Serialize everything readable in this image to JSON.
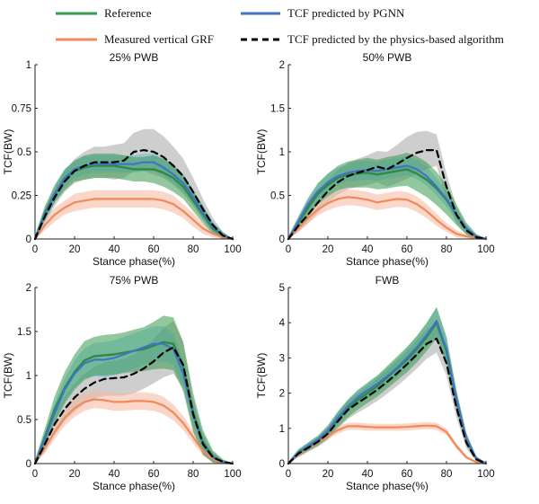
{
  "legend": [
    {
      "key": "reference",
      "label": "Reference",
      "color": "#3a9b50",
      "dash": false
    },
    {
      "key": "measured",
      "label": "Measured vertical  GRF",
      "color": "#f08a5d",
      "dash": false
    },
    {
      "key": "pgnn",
      "label": "TCF predicted by PGNN",
      "color": "#4472c4",
      "dash": false
    },
    {
      "key": "physics",
      "label": "TCF predicted by the physics-based algorithm",
      "color": "#000000",
      "dash": true
    }
  ],
  "colors": {
    "reference_band": "#3a9b50",
    "measured_band": "#f5b79a",
    "pgnn_band": "#5bb8e0",
    "physics_band": "#a6a6a6",
    "axis": "#222222"
  },
  "chart_data": [
    {
      "type": "line",
      "title": "25% PWB",
      "xlabel": "Stance phase(%)",
      "ylabel": "TCF(BW)",
      "xlim": [
        0,
        100
      ],
      "ylim": [
        0,
        1
      ],
      "xticks": [
        0,
        20,
        40,
        60,
        80,
        100
      ],
      "xtick_labels": [
        "0",
        "20",
        "40",
        "60",
        "80",
        "100"
      ],
      "yticks": [
        0,
        0.25,
        0.5,
        0.75,
        1
      ],
      "ytick_labels": [
        "0",
        "0.25",
        "0.5",
        "0.75",
        "1"
      ],
      "x": [
        0,
        5,
        10,
        15,
        20,
        25,
        30,
        35,
        40,
        45,
        50,
        55,
        60,
        65,
        70,
        75,
        80,
        85,
        90,
        95,
        100
      ],
      "series": [
        {
          "name": "Measured vertical GRF",
          "key": "measured",
          "values": [
            0,
            0.08,
            0.14,
            0.18,
            0.21,
            0.22,
            0.23,
            0.23,
            0.23,
            0.23,
            0.23,
            0.23,
            0.23,
            0.22,
            0.2,
            0.16,
            0.11,
            0.06,
            0.03,
            0.01,
            0
          ],
          "band": [
            0.02,
            0.03,
            0.04,
            0.04,
            0.05,
            0.05,
            0.05,
            0.05,
            0.05,
            0.05,
            0.05,
            0.05,
            0.05,
            0.05,
            0.05,
            0.04,
            0.04,
            0.03,
            0.02,
            0.01,
            0
          ]
        },
        {
          "name": "Reference",
          "key": "reference",
          "values": [
            0,
            0.15,
            0.26,
            0.34,
            0.39,
            0.41,
            0.42,
            0.42,
            0.42,
            0.41,
            0.4,
            0.4,
            0.4,
            0.38,
            0.35,
            0.3,
            0.22,
            0.14,
            0.06,
            0.02,
            0
          ],
          "band": [
            0.02,
            0.04,
            0.05,
            0.06,
            0.06,
            0.07,
            0.07,
            0.07,
            0.07,
            0.07,
            0.07,
            0.07,
            0.08,
            0.08,
            0.08,
            0.07,
            0.06,
            0.05,
            0.03,
            0.02,
            0
          ]
        },
        {
          "name": "TCF predicted by PGNN",
          "key": "pgnn",
          "values": [
            0,
            0.14,
            0.26,
            0.35,
            0.4,
            0.42,
            0.43,
            0.43,
            0.43,
            0.43,
            0.43,
            0.44,
            0.44,
            0.41,
            0.37,
            0.32,
            0.24,
            0.15,
            0.07,
            0.02,
            0
          ],
          "band": [
            0.02,
            0.04,
            0.05,
            0.05,
            0.05,
            0.05,
            0.05,
            0.05,
            0.05,
            0.05,
            0.05,
            0.05,
            0.05,
            0.05,
            0.05,
            0.05,
            0.04,
            0.04,
            0.03,
            0.02,
            0
          ]
        },
        {
          "name": "TCF predicted by the physics-based algorithm",
          "key": "physics",
          "values": [
            0,
            0.13,
            0.24,
            0.33,
            0.39,
            0.42,
            0.44,
            0.44,
            0.44,
            0.45,
            0.5,
            0.51,
            0.5,
            0.47,
            0.42,
            0.36,
            0.27,
            0.17,
            0.08,
            0.02,
            0
          ],
          "band": [
            0.02,
            0.04,
            0.05,
            0.06,
            0.07,
            0.08,
            0.09,
            0.09,
            0.1,
            0.1,
            0.11,
            0.12,
            0.13,
            0.12,
            0.11,
            0.1,
            0.08,
            0.06,
            0.04,
            0.02,
            0
          ]
        }
      ]
    },
    {
      "type": "line",
      "title": "50% PWB",
      "xlabel": "Stance phase(%)",
      "ylabel": "TCF(BW)",
      "xlim": [
        0,
        100
      ],
      "ylim": [
        0,
        2
      ],
      "xticks": [
        0,
        20,
        40,
        60,
        80,
        100
      ],
      "xtick_labels": [
        "0",
        "20",
        "40",
        "60",
        "80",
        "100"
      ],
      "yticks": [
        0,
        0.5,
        1,
        1.5,
        2
      ],
      "ytick_labels": [
        "0",
        "0.5",
        "1",
        "1.5",
        "2"
      ],
      "x": [
        0,
        5,
        10,
        15,
        20,
        25,
        30,
        35,
        40,
        45,
        50,
        55,
        60,
        65,
        70,
        75,
        80,
        85,
        90,
        95,
        100
      ],
      "series": [
        {
          "name": "Measured vertical GRF",
          "key": "measured",
          "values": [
            0,
            0.12,
            0.24,
            0.34,
            0.41,
            0.46,
            0.48,
            0.47,
            0.45,
            0.42,
            0.44,
            0.46,
            0.45,
            0.4,
            0.32,
            0.22,
            0.13,
            0.06,
            0.03,
            0.01,
            0
          ],
          "band": [
            0.02,
            0.04,
            0.06,
            0.07,
            0.08,
            0.09,
            0.09,
            0.09,
            0.09,
            0.09,
            0.09,
            0.09,
            0.09,
            0.09,
            0.08,
            0.07,
            0.05,
            0.04,
            0.02,
            0.01,
            0
          ]
        },
        {
          "name": "Reference",
          "key": "reference",
          "values": [
            0,
            0.18,
            0.36,
            0.52,
            0.62,
            0.7,
            0.74,
            0.75,
            0.76,
            0.74,
            0.76,
            0.78,
            0.8,
            0.75,
            0.68,
            0.58,
            0.45,
            0.28,
            0.12,
            0.03,
            0
          ],
          "band": [
            0.03,
            0.07,
            0.1,
            0.12,
            0.13,
            0.14,
            0.15,
            0.16,
            0.17,
            0.17,
            0.18,
            0.18,
            0.19,
            0.2,
            0.2,
            0.19,
            0.17,
            0.12,
            0.07,
            0.03,
            0
          ]
        },
        {
          "name": "TCF predicted by PGNN",
          "key": "pgnn",
          "values": [
            0,
            0.2,
            0.4,
            0.55,
            0.65,
            0.72,
            0.76,
            0.78,
            0.79,
            0.78,
            0.8,
            0.82,
            0.84,
            0.8,
            0.72,
            0.6,
            0.46,
            0.28,
            0.12,
            0.03,
            0
          ],
          "band": [
            0.03,
            0.06,
            0.08,
            0.09,
            0.1,
            0.1,
            0.1,
            0.11,
            0.11,
            0.11,
            0.11,
            0.11,
            0.11,
            0.11,
            0.11,
            0.1,
            0.09,
            0.07,
            0.05,
            0.02,
            0
          ]
        },
        {
          "name": "TCF predicted by the physics-based algorithm",
          "key": "physics",
          "values": [
            0,
            0.15,
            0.28,
            0.42,
            0.55,
            0.65,
            0.72,
            0.76,
            0.79,
            0.83,
            0.8,
            0.86,
            0.93,
            0.99,
            1.02,
            1.02,
            0.6,
            0.28,
            0.1,
            0.02,
            0
          ],
          "band": [
            0.03,
            0.07,
            0.1,
            0.12,
            0.13,
            0.14,
            0.15,
            0.16,
            0.17,
            0.18,
            0.2,
            0.22,
            0.24,
            0.24,
            0.22,
            0.18,
            0.15,
            0.1,
            0.05,
            0.02,
            0
          ]
        }
      ]
    },
    {
      "type": "line",
      "title": "75% PWB",
      "xlabel": "Stance phase(%)",
      "ylabel": "TCF(BW)",
      "xlim": [
        0,
        100
      ],
      "ylim": [
        0,
        2
      ],
      "xticks": [
        0,
        20,
        40,
        60,
        80,
        100
      ],
      "xtick_labels": [
        "0",
        "20",
        "40",
        "60",
        "80",
        "100"
      ],
      "yticks": [
        0,
        0.5,
        1,
        1.5,
        2
      ],
      "ytick_labels": [
        "0",
        "0.5",
        "1",
        "1.5",
        "2"
      ],
      "x": [
        0,
        5,
        10,
        15,
        20,
        25,
        30,
        35,
        40,
        45,
        50,
        55,
        60,
        65,
        70,
        75,
        80,
        85,
        90,
        95,
        100
      ],
      "series": [
        {
          "name": "Measured vertical GRF",
          "key": "measured",
          "values": [
            0,
            0.18,
            0.36,
            0.52,
            0.63,
            0.7,
            0.73,
            0.72,
            0.7,
            0.7,
            0.71,
            0.71,
            0.7,
            0.66,
            0.58,
            0.46,
            0.3,
            0.14,
            0.05,
            0.01,
            0
          ],
          "band": [
            0.03,
            0.06,
            0.08,
            0.09,
            0.1,
            0.1,
            0.1,
            0.1,
            0.1,
            0.1,
            0.1,
            0.1,
            0.1,
            0.1,
            0.09,
            0.08,
            0.07,
            0.05,
            0.03,
            0.01,
            0
          ]
        },
        {
          "name": "Reference",
          "key": "reference",
          "values": [
            0,
            0.3,
            0.62,
            0.86,
            1.04,
            1.17,
            1.22,
            1.23,
            1.24,
            1.26,
            1.28,
            1.3,
            1.34,
            1.38,
            1.36,
            1.1,
            0.58,
            0.24,
            0.08,
            0.02,
            0
          ],
          "band": [
            0.04,
            0.1,
            0.15,
            0.18,
            0.2,
            0.22,
            0.22,
            0.23,
            0.23,
            0.23,
            0.24,
            0.25,
            0.27,
            0.3,
            0.3,
            0.28,
            0.22,
            0.14,
            0.07,
            0.03,
            0
          ]
        },
        {
          "name": "TCF predicted by PGNN",
          "key": "pgnn",
          "values": [
            0,
            0.28,
            0.58,
            0.84,
            1.02,
            1.14,
            1.18,
            1.18,
            1.2,
            1.24,
            1.28,
            1.32,
            1.36,
            1.36,
            1.3,
            1.02,
            0.56,
            0.22,
            0.07,
            0.02,
            0
          ],
          "band": [
            0.04,
            0.08,
            0.11,
            0.13,
            0.15,
            0.17,
            0.19,
            0.2,
            0.2,
            0.2,
            0.2,
            0.2,
            0.2,
            0.2,
            0.18,
            0.15,
            0.12,
            0.08,
            0.05,
            0.02,
            0
          ]
        },
        {
          "name": "TCF predicted by the physics-based algorithm",
          "key": "physics",
          "values": [
            0,
            0.22,
            0.45,
            0.62,
            0.75,
            0.85,
            0.92,
            0.96,
            0.97,
            0.98,
            1.02,
            1.08,
            1.16,
            1.26,
            1.32,
            1.12,
            0.56,
            0.22,
            0.07,
            0.02,
            0
          ],
          "band": [
            0.04,
            0.09,
            0.12,
            0.14,
            0.16,
            0.17,
            0.18,
            0.19,
            0.2,
            0.21,
            0.22,
            0.23,
            0.25,
            0.28,
            0.3,
            0.26,
            0.18,
            0.12,
            0.06,
            0.02,
            0
          ]
        }
      ]
    },
    {
      "type": "line",
      "title": "FWB",
      "xlabel": "Stance phase(%)",
      "ylabel": "TCF(BW)",
      "xlim": [
        0,
        100
      ],
      "ylim": [
        0,
        5
      ],
      "xticks": [
        0,
        20,
        40,
        60,
        80,
        100
      ],
      "xtick_labels": [
        "0",
        "20",
        "40",
        "60",
        "80",
        "100"
      ],
      "yticks": [
        0,
        1,
        2,
        3,
        4,
        5
      ],
      "ytick_labels": [
        "0",
        "1",
        "2",
        "3",
        "4",
        "5"
      ],
      "x": [
        0,
        5,
        10,
        15,
        20,
        25,
        30,
        35,
        40,
        45,
        50,
        55,
        60,
        65,
        70,
        75,
        80,
        85,
        90,
        95,
        100
      ],
      "series": [
        {
          "name": "Measured vertical GRF",
          "key": "measured",
          "values": [
            0,
            0.25,
            0.45,
            0.6,
            0.78,
            0.95,
            1.06,
            1.06,
            1.04,
            1.03,
            1.03,
            1.03,
            1.04,
            1.06,
            1.08,
            1.06,
            0.9,
            0.5,
            0.18,
            0.04,
            0
          ],
          "band": [
            0.04,
            0.07,
            0.08,
            0.09,
            0.09,
            0.1,
            0.1,
            0.1,
            0.1,
            0.1,
            0.1,
            0.1,
            0.1,
            0.1,
            0.1,
            0.1,
            0.09,
            0.08,
            0.05,
            0.02,
            0
          ]
        },
        {
          "name": "Reference",
          "key": "reference",
          "values": [
            0,
            0.3,
            0.48,
            0.65,
            0.9,
            1.25,
            1.55,
            1.8,
            2.0,
            2.2,
            2.45,
            2.7,
            2.95,
            3.25,
            3.6,
            4.0,
            3.2,
            1.8,
            0.7,
            0.15,
            0
          ],
          "band": [
            0.05,
            0.1,
            0.12,
            0.14,
            0.18,
            0.22,
            0.25,
            0.27,
            0.28,
            0.3,
            0.32,
            0.34,
            0.36,
            0.38,
            0.4,
            0.45,
            0.4,
            0.3,
            0.18,
            0.06,
            0
          ]
        },
        {
          "name": "TCF predicted by PGNN",
          "key": "pgnn",
          "values": [
            0,
            0.32,
            0.5,
            0.68,
            0.94,
            1.3,
            1.62,
            1.88,
            2.08,
            2.26,
            2.48,
            2.72,
            3.0,
            3.3,
            3.65,
            4.05,
            3.25,
            1.85,
            0.72,
            0.16,
            0
          ],
          "band": [
            0.05,
            0.08,
            0.1,
            0.12,
            0.15,
            0.18,
            0.2,
            0.22,
            0.23,
            0.24,
            0.25,
            0.27,
            0.29,
            0.31,
            0.34,
            0.38,
            0.34,
            0.25,
            0.15,
            0.05,
            0
          ]
        },
        {
          "name": "TCF predicted by the physics-based algorithm",
          "key": "physics",
          "values": [
            0,
            0.28,
            0.45,
            0.62,
            0.85,
            1.2,
            1.52,
            1.72,
            1.9,
            2.1,
            2.32,
            2.56,
            2.82,
            3.1,
            3.4,
            3.55,
            2.85,
            1.6,
            0.6,
            0.12,
            0
          ],
          "band": [
            0.05,
            0.1,
            0.12,
            0.14,
            0.18,
            0.22,
            0.26,
            0.28,
            0.3,
            0.32,
            0.34,
            0.36,
            0.38,
            0.4,
            0.42,
            0.4,
            0.36,
            0.28,
            0.16,
            0.05,
            0
          ]
        }
      ]
    }
  ]
}
